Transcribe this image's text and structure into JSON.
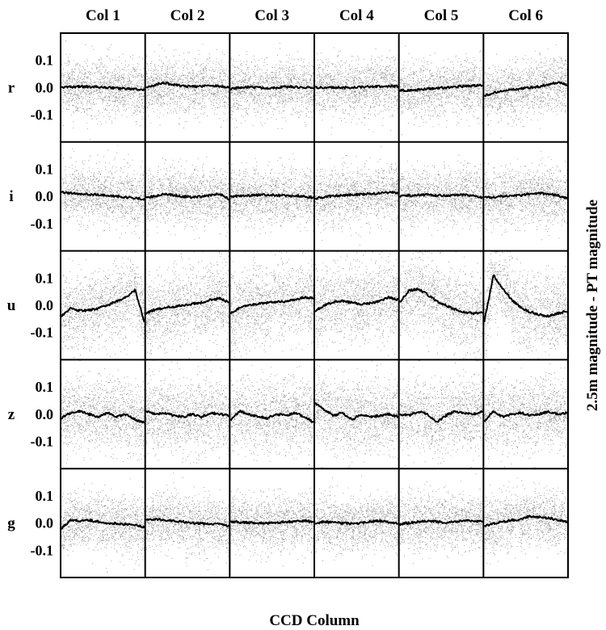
{
  "chart_data": {
    "type": "scatter",
    "xlabel": "CCD Column",
    "ylabel": "2.5m magnitude - PT magnitude",
    "columns": [
      "Col 1",
      "Col 2",
      "Col 3",
      "Col 4",
      "Col 5",
      "Col 6"
    ],
    "rows": [
      "r",
      "i",
      "u",
      "z",
      "g"
    ],
    "ylim": [
      -0.2,
      0.2
    ],
    "yticks": [
      0.1,
      0.0,
      -0.1
    ],
    "ytick_labels": [
      "0.1",
      "0.0",
      "-0.1"
    ],
    "grid": false,
    "legend": "none",
    "colors": {
      "points": "#8c8c8c",
      "line": "#000000",
      "frame": "#000000"
    },
    "point_scatter_sigma": {
      "r": 0.05,
      "i": 0.05,
      "u": 0.07,
      "z": 0.065,
      "g": 0.05
    },
    "trend_series": {
      "r": [
        [
          0.0,
          0.002,
          0.004,
          0.003,
          0.002,
          0.0,
          -0.002,
          -0.004,
          -0.006,
          -0.01
        ],
        [
          0.0,
          0.01,
          0.018,
          0.01,
          0.005,
          0.004,
          0.005,
          0.008,
          0.005,
          0.0
        ],
        [
          -0.005,
          0.0,
          0.002,
          0.0,
          -0.002,
          0.0,
          0.003,
          0.002,
          0.0,
          -0.002
        ],
        [
          0.0,
          0.0,
          0.0,
          0.0,
          0.0,
          0.002,
          0.003,
          0.004,
          0.006,
          0.005
        ],
        [
          -0.01,
          -0.012,
          -0.008,
          -0.005,
          -0.002,
          0.0,
          0.003,
          0.005,
          0.007,
          0.008
        ],
        [
          -0.03,
          -0.02,
          -0.012,
          -0.008,
          -0.004,
          0.0,
          0.004,
          0.012,
          0.018,
          0.01
        ]
      ],
      "i": [
        [
          0.015,
          0.012,
          0.01,
          0.008,
          0.005,
          0.003,
          0.0,
          -0.003,
          -0.006,
          -0.01
        ],
        [
          -0.005,
          0.002,
          0.008,
          0.005,
          0.0,
          -0.003,
          0.0,
          0.004,
          0.01,
          -0.01
        ],
        [
          0.0,
          0.002,
          0.003,
          0.005,
          0.006,
          0.004,
          0.003,
          0.002,
          0.0,
          -0.004
        ],
        [
          -0.008,
          -0.002,
          0.002,
          0.004,
          0.006,
          0.008,
          0.01,
          0.012,
          0.014,
          0.015
        ],
        [
          0.0,
          0.003,
          0.005,
          0.006,
          0.004,
          0.003,
          0.004,
          0.006,
          0.002,
          -0.004
        ],
        [
          -0.005,
          -0.002,
          0.0,
          0.002,
          0.004,
          0.01,
          0.012,
          0.008,
          0.004,
          -0.008
        ]
      ],
      "u": [
        [
          -0.04,
          -0.01,
          -0.02,
          -0.018,
          -0.01,
          0.0,
          0.015,
          0.03,
          0.055,
          -0.06
        ],
        [
          -0.03,
          -0.015,
          -0.01,
          -0.005,
          0.0,
          0.005,
          0.01,
          0.02,
          0.025,
          0.01
        ],
        [
          -0.03,
          -0.01,
          0.0,
          0.005,
          0.01,
          0.012,
          0.015,
          0.02,
          0.03,
          0.025
        ],
        [
          -0.02,
          0.0,
          0.012,
          0.015,
          0.01,
          0.005,
          0.008,
          0.015,
          0.03,
          0.02
        ],
        [
          0.01,
          0.055,
          0.06,
          0.04,
          0.015,
          0.0,
          -0.015,
          -0.025,
          -0.03,
          -0.025
        ],
        [
          -0.06,
          0.11,
          0.06,
          0.02,
          -0.01,
          -0.025,
          -0.035,
          -0.04,
          -0.03,
          -0.02
        ]
      ],
      "z": [
        [
          -0.015,
          0.005,
          0.01,
          0.0,
          -0.01,
          0.005,
          -0.01,
          0.0,
          -0.02,
          -0.03
        ],
        [
          0.01,
          0.0,
          0.005,
          -0.005,
          -0.01,
          0.0,
          -0.01,
          0.005,
          0.0,
          -0.005
        ],
        [
          -0.02,
          0.01,
          0.0,
          -0.01,
          -0.015,
          0.0,
          -0.005,
          0.005,
          -0.01,
          -0.03
        ],
        [
          0.04,
          0.015,
          -0.005,
          0.005,
          -0.02,
          0.0,
          -0.01,
          -0.005,
          0.0,
          -0.01
        ],
        [
          0.0,
          -0.005,
          0.01,
          0.0,
          -0.03,
          -0.005,
          0.01,
          0.005,
          0.0,
          0.01
        ],
        [
          -0.025,
          0.01,
          -0.01,
          0.0,
          0.005,
          -0.005,
          0.0,
          0.01,
          0.0,
          0.005
        ]
      ],
      "g": [
        [
          -0.02,
          0.01,
          0.008,
          0.01,
          0.005,
          0.0,
          -0.002,
          -0.005,
          -0.008,
          -0.015
        ],
        [
          0.01,
          0.015,
          0.012,
          0.008,
          0.005,
          0.0,
          -0.002,
          -0.003,
          -0.004,
          -0.01
        ],
        [
          0.005,
          0.003,
          0.002,
          0.0,
          0.0,
          0.002,
          0.004,
          0.006,
          0.008,
          0.005
        ],
        [
          0.0,
          0.005,
          0.002,
          0.0,
          -0.002,
          0.0,
          0.005,
          0.008,
          0.003,
          0.0
        ],
        [
          -0.005,
          0.0,
          0.005,
          0.008,
          0.005,
          0.002,
          0.004,
          0.01,
          0.008,
          0.005
        ],
        [
          -0.01,
          -0.002,
          0.005,
          0.01,
          0.015,
          0.025,
          0.022,
          0.018,
          0.012,
          0.005
        ]
      ]
    }
  }
}
